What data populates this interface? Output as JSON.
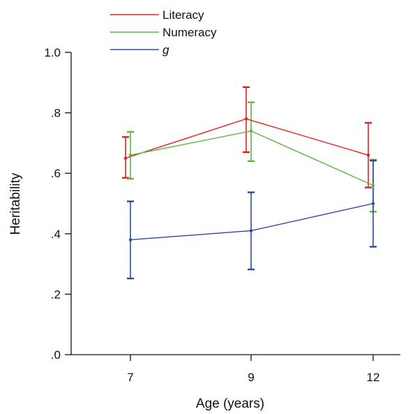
{
  "chart_data": {
    "type": "line",
    "xlabel": "Age (years)",
    "ylabel": "Heritability",
    "x": [
      7,
      9,
      12
    ],
    "x_tick_labels": [
      "7",
      "9",
      "12"
    ],
    "ylim": [
      0,
      1.0
    ],
    "y_ticks": [
      0,
      0.2,
      0.4,
      0.6,
      0.8,
      1.0
    ],
    "y_tick_labels": [
      ".0",
      ".2",
      ".4",
      ".6",
      ".8",
      "1.0"
    ],
    "grid": false,
    "legend_position": "top-left",
    "series": [
      {
        "name": "Literacy",
        "color": "#e02020",
        "values": [
          0.65,
          0.78,
          0.66
        ],
        "ci_low": [
          0.585,
          0.67,
          0.553
        ],
        "ci_high": [
          0.72,
          0.885,
          0.767
        ]
      },
      {
        "name": "Numeracy",
        "color": "#5cb842",
        "values": [
          0.66,
          0.74,
          0.56
        ],
        "ci_low": [
          0.582,
          0.64,
          0.473
        ],
        "ci_high": [
          0.737,
          0.835,
          0.645
        ]
      },
      {
        "name": "g",
        "color": "#2a4a9a",
        "values": [
          0.38,
          0.41,
          0.5
        ],
        "ci_low": [
          0.252,
          0.282,
          0.357
        ],
        "ci_high": [
          0.507,
          0.537,
          0.642
        ]
      }
    ]
  }
}
